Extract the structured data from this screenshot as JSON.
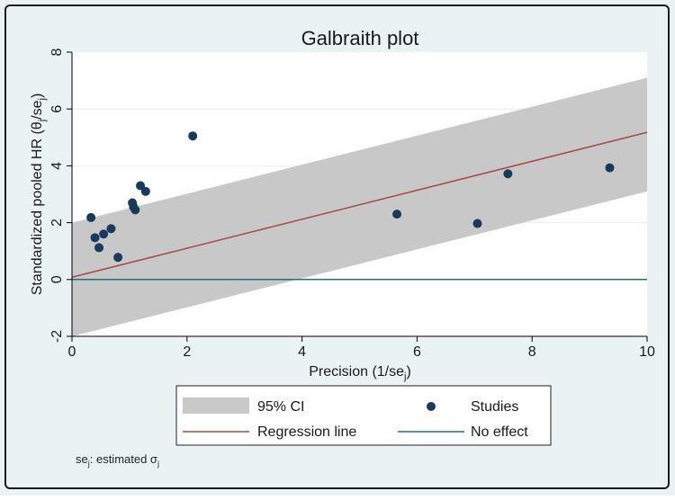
{
  "chart_data": {
    "type": "scatter",
    "title": "Galbraith plot",
    "xlabel": "Precision (1/se",
    "xlabel_sub": "j",
    "xlabel_close": ")",
    "ylabel": "Standardized pooled HR (θ",
    "ylabel_sub1": "j",
    "ylabel_mid": "/se",
    "ylabel_sub2": "j",
    "ylabel_close": ")",
    "xlim": [
      0,
      10
    ],
    "ylim": [
      -2,
      8
    ],
    "x_ticks": [
      0,
      2,
      4,
      6,
      8,
      10
    ],
    "y_ticks": [
      -2,
      0,
      2,
      4,
      6,
      8
    ],
    "grid": true,
    "regression_line": {
      "slope": 0.51,
      "intercept": 0.08
    },
    "ci_band": {
      "lower_intercept": -2.0,
      "upper_intercept": 2.0,
      "slope": 0.51
    },
    "no_effect_y": 0,
    "series": [
      {
        "name": "Studies",
        "points": [
          {
            "x": 0.33,
            "y": 2.18
          },
          {
            "x": 0.4,
            "y": 1.47
          },
          {
            "x": 0.47,
            "y": 1.12
          },
          {
            "x": 0.55,
            "y": 1.6
          },
          {
            "x": 0.68,
            "y": 1.79
          },
          {
            "x": 0.8,
            "y": 0.78
          },
          {
            "x": 1.05,
            "y": 2.7
          },
          {
            "x": 1.07,
            "y": 2.55
          },
          {
            "x": 1.1,
            "y": 2.45
          },
          {
            "x": 1.19,
            "y": 3.3
          },
          {
            "x": 1.28,
            "y": 3.1
          },
          {
            "x": 2.1,
            "y": 5.05
          },
          {
            "x": 5.65,
            "y": 2.3
          },
          {
            "x": 7.05,
            "y": 1.97
          },
          {
            "x": 7.58,
            "y": 3.72
          },
          {
            "x": 9.35,
            "y": 3.93
          }
        ]
      }
    ],
    "legend": {
      "placement": "bottom",
      "items": [
        {
          "label": "95% CI",
          "kind": "band"
        },
        {
          "label": "Studies",
          "kind": "marker"
        },
        {
          "label": "Regression line",
          "kind": "line"
        },
        {
          "label": "No effect",
          "kind": "line"
        }
      ]
    },
    "footnote_prefix": "se",
    "footnote_prefix_sub": "j",
    "footnote_text": ": estimated σ",
    "footnote_sub": "j"
  },
  "colors": {
    "band": "#c8c8c8",
    "marker": "#1a3a5c",
    "regression": "#a44a4a",
    "no_effect": "#2e6b78",
    "plot_bg": "#ffffff",
    "frame_bg": "#eaf2f3",
    "grid": "#e6eef0"
  }
}
